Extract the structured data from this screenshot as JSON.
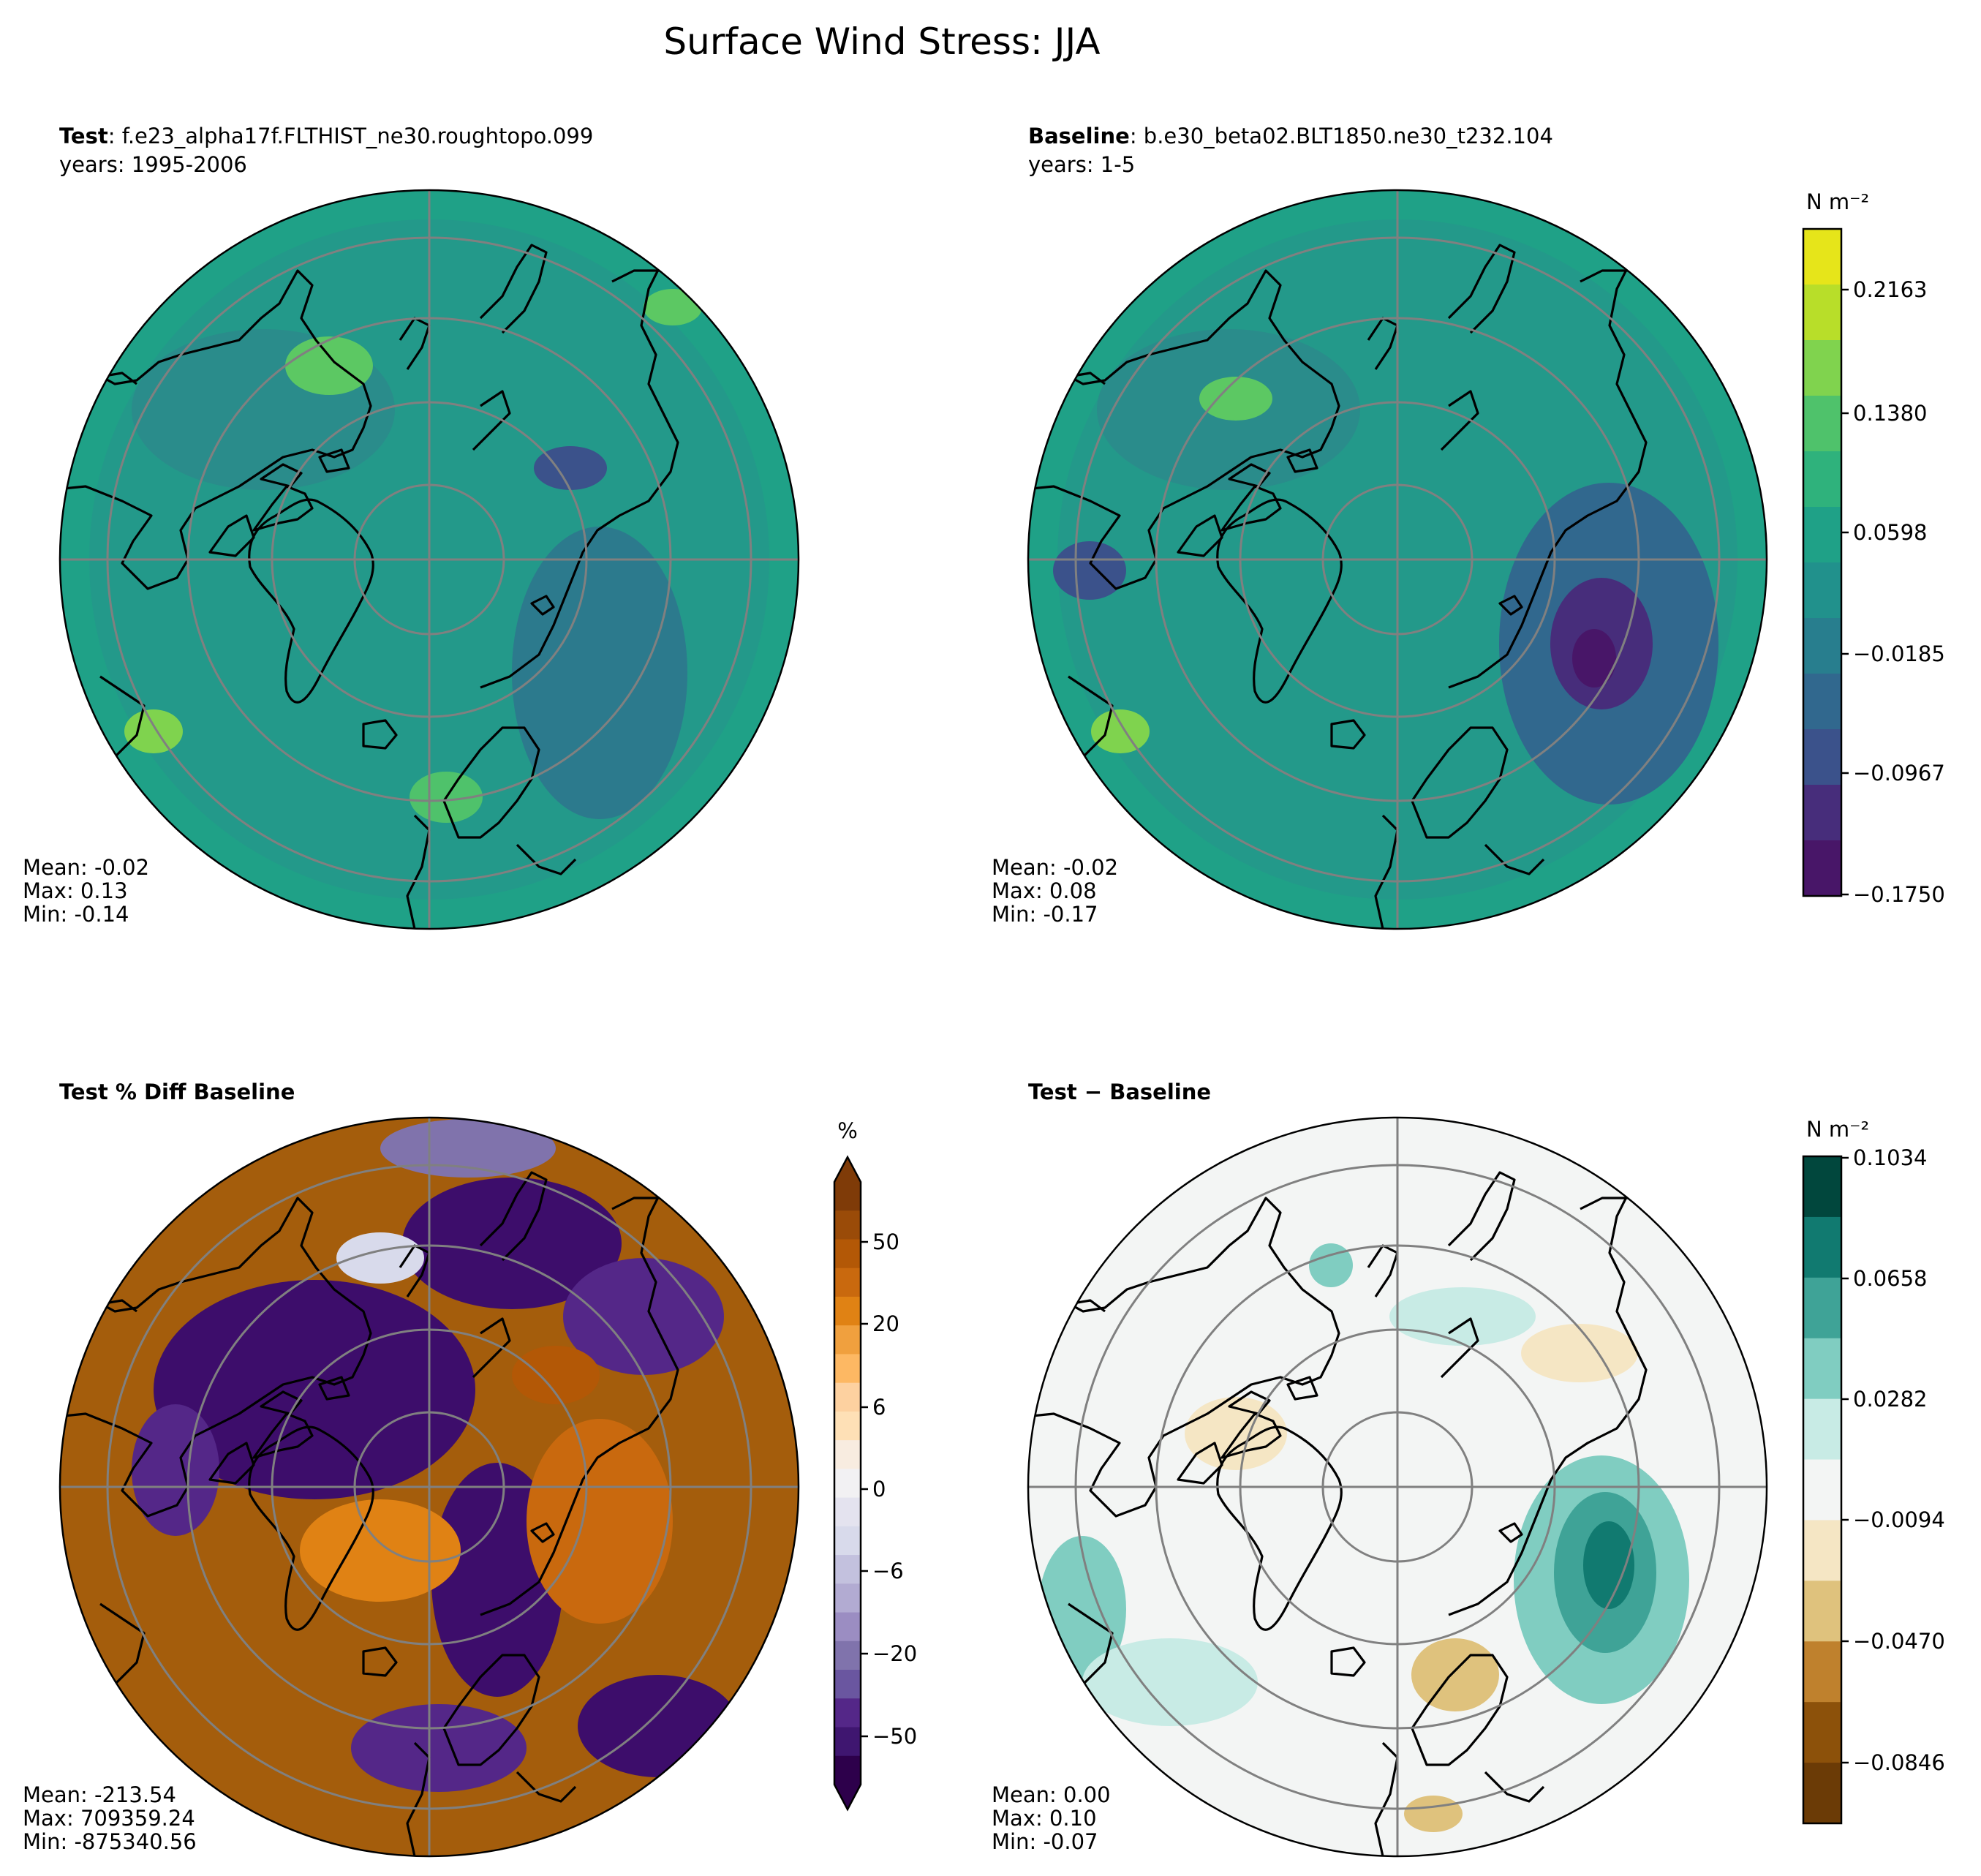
{
  "figure": {
    "title": "Surface Wind Stress: JJA"
  },
  "panels": [
    {
      "id": "test",
      "title_bold": "Test",
      "title_rest": ": f.e23_alpha17f.FLTHIST_ne30.roughtopo.099",
      "subtitle": "years: 1995-2006",
      "stats": {
        "mean": "Mean: -0.02",
        "max": "Max:  0.13",
        "min": "Min: -0.14"
      },
      "background": "#239a86"
    },
    {
      "id": "baseline",
      "title_bold": "Baseline",
      "title_rest": ": b.e30_beta02.BLT1850.ne30_t232.104",
      "subtitle": "years: 1-5",
      "stats": {
        "mean": "Mean: -0.02",
        "max": "Max:  0.08",
        "min": "Min: -0.17"
      },
      "background": "#239a86"
    },
    {
      "id": "pctdiff",
      "title_bold": "Test % Diff Baseline",
      "title_rest": "",
      "subtitle": "",
      "stats": {
        "mean": "Mean: -213.54",
        "max": "Max: 709359.24",
        "min": "Min: -875340.56"
      },
      "background": "#a0580c"
    },
    {
      "id": "diff",
      "title_bold": "Test",
      "title_rest": " − Baseline",
      "subtitle": "",
      "stats": {
        "mean": "Mean:  0.00",
        "max": "Max:  0.10",
        "min": "Min: -0.07"
      },
      "background": "#f3f4f3"
    }
  ],
  "colorbars": {
    "top": {
      "unit": "N m⁻²",
      "ticks": [
        "0.2163",
        "0.1380",
        "0.0598",
        "−0.0185",
        "−0.0967",
        "−0.1750"
      ],
      "colors": [
        "#e6e51a",
        "#b8de29",
        "#80d34e",
        "#4fc26b",
        "#2fb27c",
        "#1fa187",
        "#21918c",
        "#287e8e",
        "#31688e",
        "#3b528b",
        "#472d7b",
        "#481668"
      ]
    },
    "pct": {
      "unit": "%",
      "ticks": [
        "50",
        "20",
        "6",
        "0",
        "−6",
        "−20",
        "−50"
      ],
      "colors": [
        "#7f3b08",
        "#9a4b08",
        "#b35806",
        "#c9690e",
        "#e08214",
        "#f0a03e",
        "#fdb863",
        "#fdd1a0",
        "#fee0b6",
        "#f8ece0",
        "#f2f1f3",
        "#e4e3ef",
        "#d8daeb",
        "#c3c1de",
        "#b2abd2",
        "#9b8dc2",
        "#8073ac",
        "#6a56a0",
        "#542788",
        "#3f1670",
        "#2d004b"
      ]
    },
    "diff": {
      "unit": "N m⁻²",
      "ticks": [
        "0.1034",
        "0.0658",
        "0.0282",
        "−0.0094",
        "−0.0470",
        "−0.0846"
      ],
      "colors": [
        "#01473d",
        "#117a70",
        "#3fa397",
        "#80cdc1",
        "#c8ebe5",
        "#f3f5f4",
        "#f5e6c4",
        "#dfc27d",
        "#bf812d",
        "#8c510a",
        "#6b3b06"
      ]
    }
  },
  "colors": {
    "viridis_dark": "#33628d",
    "viridis_mid": "#21918c",
    "viridis_light": "#5cc863",
    "viridis_deep": "#3e2f7f",
    "puor_purple": "#3d0d6b",
    "puor_light": "#ddd8ea",
    "brbg_teal": "#86cfc3",
    "brbg_tan": "#e6cf9a"
  }
}
